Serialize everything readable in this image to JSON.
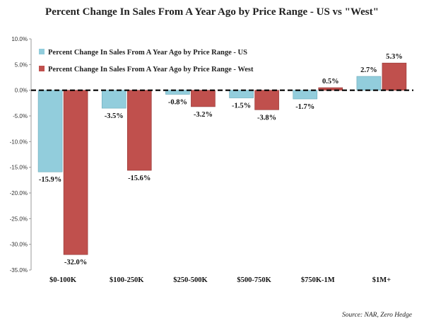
{
  "chart_data": {
    "type": "bar",
    "title": "Percent Change In Sales From A Year Ago by Price Range - US vs \"West\"",
    "categories": [
      "$0-100K",
      "$100-250K",
      "$250-500K",
      "$500-750K",
      "$750K-1M",
      "$1M+"
    ],
    "series": [
      {
        "name": "Percent Change In Sales From A Year Ago by Price Range - US",
        "values": [
          -15.9,
          -3.5,
          -0.8,
          -1.5,
          -1.7,
          2.7
        ],
        "labels": [
          "-15.9%",
          "-3.5%",
          "-0.8%",
          "-1.5%",
          "-1.7%",
          "2.7%"
        ],
        "color": "#92cddc"
      },
      {
        "name": "Percent Change In Sales From A Year Ago by Price Range - West",
        "values": [
          -32.0,
          -15.6,
          -3.2,
          -3.8,
          0.5,
          5.3
        ],
        "labels": [
          "-32.0%",
          "-15.6%",
          "-3.2%",
          "-3.8%",
          "0.5%",
          "5.3%"
        ],
        "color": "#c0504d"
      }
    ],
    "ylim": [
      -35,
      10
    ],
    "yticks": [
      10,
      5,
      0,
      -5,
      -10,
      -15,
      -20,
      -25,
      -30,
      -35
    ],
    "ytick_labels": [
      "10.0%",
      "5.0%",
      "0.0%",
      "-5.0%",
      "-10.0%",
      "-15.0%",
      "-20.0%",
      "-25.0%",
      "-30.0%",
      "-35.0%"
    ],
    "zero_line": "dashed",
    "grid": false,
    "legend": "top-left",
    "source": "Source: NAR, Zero Hedge"
  }
}
